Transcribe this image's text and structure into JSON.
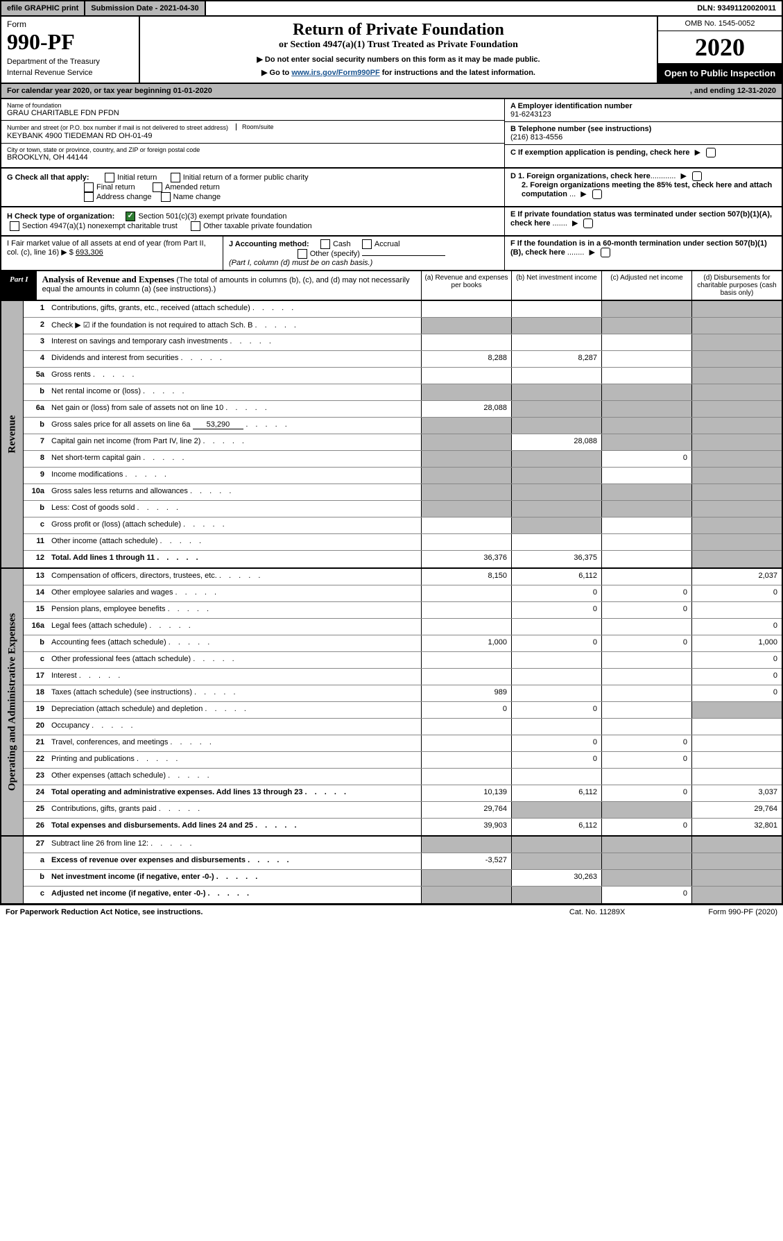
{
  "top": {
    "efile": "efile GRAPHIC print",
    "subdate_lbl": "Submission Date - 2021-04-30",
    "dln": "DLN: 93491120020011"
  },
  "hdr": {
    "form_lbl": "Form",
    "form_num": "990-PF",
    "dept1": "Department of the Treasury",
    "dept2": "Internal Revenue Service",
    "title": "Return of Private Foundation",
    "subtitle": "or Section 4947(a)(1) Trust Treated as Private Foundation",
    "instr1": "▶ Do not enter social security numbers on this form as it may be made public.",
    "instr2_pre": "▶ Go to ",
    "instr2_link": "www.irs.gov/Form990PF",
    "instr2_post": " for instructions and the latest information.",
    "omb": "OMB No. 1545-0052",
    "year": "2020",
    "open": "Open to Public Inspection"
  },
  "cal": {
    "a": "For calendar year 2020, or tax year beginning 01-01-2020",
    "b": ", and ending 12-31-2020"
  },
  "name": {
    "lbl": "Name of foundation",
    "val": "GRAU CHARITABLE FDN PFDN"
  },
  "addr1": {
    "lbl": "Number and street (or P.O. box number if mail is not delivered to street address)",
    "val": "KEYBANK 4900 TIEDEMAN RD OH-01-49",
    "room": "Room/suite"
  },
  "addr2": {
    "lbl": "City or town, state or province, country, and ZIP or foreign postal code",
    "val": "BROOKLYN, OH  44144"
  },
  "A": {
    "lbl": "A Employer identification number",
    "val": "91-6243123"
  },
  "B": {
    "lbl": "B Telephone number (see instructions)",
    "val": "(216) 813-4556"
  },
  "C": {
    "lbl": "C If exemption application is pending, check here"
  },
  "D": {
    "d1": "D 1. Foreign organizations, check here",
    "d2": "2. Foreign organizations meeting the 85% test, check here and attach computation"
  },
  "E": {
    "lbl": "E  If private foundation status was terminated under section 507(b)(1)(A), check here"
  },
  "F": {
    "lbl": "F  If the foundation is in a 60-month termination under section 507(b)(1)(B), check here"
  },
  "G": {
    "lbl": "G Check all that apply:",
    "o": [
      "Initial return",
      "Initial return of a former public charity",
      "Final return",
      "Amended return",
      "Address change",
      "Name change"
    ]
  },
  "H": {
    "lbl": "H Check type of organization:",
    "o": [
      "Section 501(c)(3) exempt private foundation",
      "Section 4947(a)(1) nonexempt charitable trust",
      "Other taxable private foundation"
    ]
  },
  "I": {
    "lbl": "I Fair market value of all assets at end of year (from Part II, col. (c), line 16) ▶ $",
    "val": "693,306"
  },
  "J": {
    "lbl": "J Accounting method:",
    "o": [
      "Cash",
      "Accrual",
      "Other (specify)"
    ],
    "note": "(Part I, column (d) must be on cash basis.)"
  },
  "part1": {
    "lbl": "Part I",
    "title": "Analysis of Revenue and Expenses",
    "sub": "(The total of amounts in columns (b), (c), and (d) may not necessarily equal the amounts in column (a) (see instructions).)",
    "cols": [
      "(a)   Revenue and expenses per books",
      "(b)  Net investment income",
      "(c)  Adjusted net income",
      "(d)  Disbursements for charitable purposes (cash basis only)"
    ]
  },
  "rev_side": "Revenue",
  "exp_side": "Operating and Administrative Expenses",
  "rows": {
    "r1": {
      "n": "1",
      "d": "Contributions, gifts, grants, etc., received (attach schedule)",
      "a": "",
      "b": "",
      "c": "s",
      "dd": "s"
    },
    "r2": {
      "n": "2",
      "d": "Check ▶ ☑ if the foundation is not required to attach Sch. B",
      "a": "s",
      "b": "s",
      "c": "s",
      "dd": "s"
    },
    "r3": {
      "n": "3",
      "d": "Interest on savings and temporary cash investments",
      "a": "",
      "b": "",
      "c": "",
      "dd": "s"
    },
    "r4": {
      "n": "4",
      "d": "Dividends and interest from securities",
      "a": "8,288",
      "b": "8,287",
      "c": "",
      "dd": "s"
    },
    "r5a": {
      "n": "5a",
      "d": "Gross rents",
      "a": "",
      "b": "",
      "c": "",
      "dd": "s"
    },
    "r5b": {
      "n": "b",
      "d": "Net rental income or (loss)",
      "a": "s",
      "b": "s",
      "c": "s",
      "dd": "s"
    },
    "r6a": {
      "n": "6a",
      "d": "Net gain or (loss) from sale of assets not on line 10",
      "a": "28,088",
      "b": "s",
      "c": "s",
      "dd": "s"
    },
    "r6b": {
      "n": "b",
      "d": "Gross sales price for all assets on line 6a",
      "v": "53,290",
      "a": "s",
      "b": "s",
      "c": "s",
      "dd": "s"
    },
    "r7": {
      "n": "7",
      "d": "Capital gain net income (from Part IV, line 2)",
      "a": "s",
      "b": "28,088",
      "c": "s",
      "dd": "s"
    },
    "r8": {
      "n": "8",
      "d": "Net short-term capital gain",
      "a": "s",
      "b": "s",
      "c": "0",
      "dd": "s"
    },
    "r9": {
      "n": "9",
      "d": "Income modifications",
      "a": "s",
      "b": "s",
      "c": "",
      "dd": "s"
    },
    "r10a": {
      "n": "10a",
      "d": "Gross sales less returns and allowances",
      "a": "s",
      "b": "s",
      "c": "s",
      "dd": "s"
    },
    "r10b": {
      "n": "b",
      "d": "Less: Cost of goods sold",
      "a": "s",
      "b": "s",
      "c": "s",
      "dd": "s"
    },
    "r10c": {
      "n": "c",
      "d": "Gross profit or (loss) (attach schedule)",
      "a": "",
      "b": "s",
      "c": "",
      "dd": "s"
    },
    "r11": {
      "n": "11",
      "d": "Other income (attach schedule)",
      "a": "",
      "b": "",
      "c": "",
      "dd": "s"
    },
    "r12": {
      "n": "12",
      "d": "Total. Add lines 1 through 11",
      "a": "36,376",
      "b": "36,375",
      "c": "",
      "dd": "s",
      "bold": true
    },
    "r13": {
      "n": "13",
      "d": "Compensation of officers, directors, trustees, etc.",
      "a": "8,150",
      "b": "6,112",
      "c": "",
      "dd": "2,037"
    },
    "r14": {
      "n": "14",
      "d": "Other employee salaries and wages",
      "a": "",
      "b": "0",
      "c": "0",
      "dd": "0"
    },
    "r15": {
      "n": "15",
      "d": "Pension plans, employee benefits",
      "a": "",
      "b": "0",
      "c": "0",
      "dd": ""
    },
    "r16a": {
      "n": "16a",
      "d": "Legal fees (attach schedule)",
      "a": "",
      "b": "",
      "c": "",
      "dd": "0"
    },
    "r16b": {
      "n": "b",
      "d": "Accounting fees (attach schedule)",
      "a": "1,000",
      "b": "0",
      "c": "0",
      "dd": "1,000"
    },
    "r16c": {
      "n": "c",
      "d": "Other professional fees (attach schedule)",
      "a": "",
      "b": "",
      "c": "",
      "dd": "0"
    },
    "r17": {
      "n": "17",
      "d": "Interest",
      "a": "",
      "b": "",
      "c": "",
      "dd": "0"
    },
    "r18": {
      "n": "18",
      "d": "Taxes (attach schedule) (see instructions)",
      "a": "989",
      "b": "",
      "c": "",
      "dd": "0"
    },
    "r19": {
      "n": "19",
      "d": "Depreciation (attach schedule) and depletion",
      "a": "0",
      "b": "0",
      "c": "",
      "dd": "s"
    },
    "r20": {
      "n": "20",
      "d": "Occupancy",
      "a": "",
      "b": "",
      "c": "",
      "dd": ""
    },
    "r21": {
      "n": "21",
      "d": "Travel, conferences, and meetings",
      "a": "",
      "b": "0",
      "c": "0",
      "dd": ""
    },
    "r22": {
      "n": "22",
      "d": "Printing and publications",
      "a": "",
      "b": "0",
      "c": "0",
      "dd": ""
    },
    "r23": {
      "n": "23",
      "d": "Other expenses (attach schedule)",
      "a": "",
      "b": "",
      "c": "",
      "dd": ""
    },
    "r24": {
      "n": "24",
      "d": "Total operating and administrative expenses. Add lines 13 through 23",
      "a": "10,139",
      "b": "6,112",
      "c": "0",
      "dd": "3,037",
      "bold": true
    },
    "r25": {
      "n": "25",
      "d": "Contributions, gifts, grants paid",
      "a": "29,764",
      "b": "s",
      "c": "s",
      "dd": "29,764"
    },
    "r26": {
      "n": "26",
      "d": "Total expenses and disbursements. Add lines 24 and 25",
      "a": "39,903",
      "b": "6,112",
      "c": "0",
      "dd": "32,801",
      "bold": true
    },
    "r27": {
      "n": "27",
      "d": "Subtract line 26 from line 12:",
      "a": "s",
      "b": "s",
      "c": "s",
      "dd": "s"
    },
    "r27a": {
      "n": "a",
      "d": "Excess of revenue over expenses and disbursements",
      "a": "-3,527",
      "b": "s",
      "c": "s",
      "dd": "s",
      "bold": true
    },
    "r27b": {
      "n": "b",
      "d": "Net investment income (if negative, enter -0-)",
      "a": "s",
      "b": "30,263",
      "c": "s",
      "dd": "s",
      "bold": true
    },
    "r27c": {
      "n": "c",
      "d": "Adjusted net income (if negative, enter -0-)",
      "a": "s",
      "b": "s",
      "c": "0",
      "dd": "s",
      "bold": true
    }
  },
  "foot": {
    "a": "For Paperwork Reduction Act Notice, see instructions.",
    "b": "Cat. No. 11289X",
    "c": "Form 990-PF (2020)"
  }
}
